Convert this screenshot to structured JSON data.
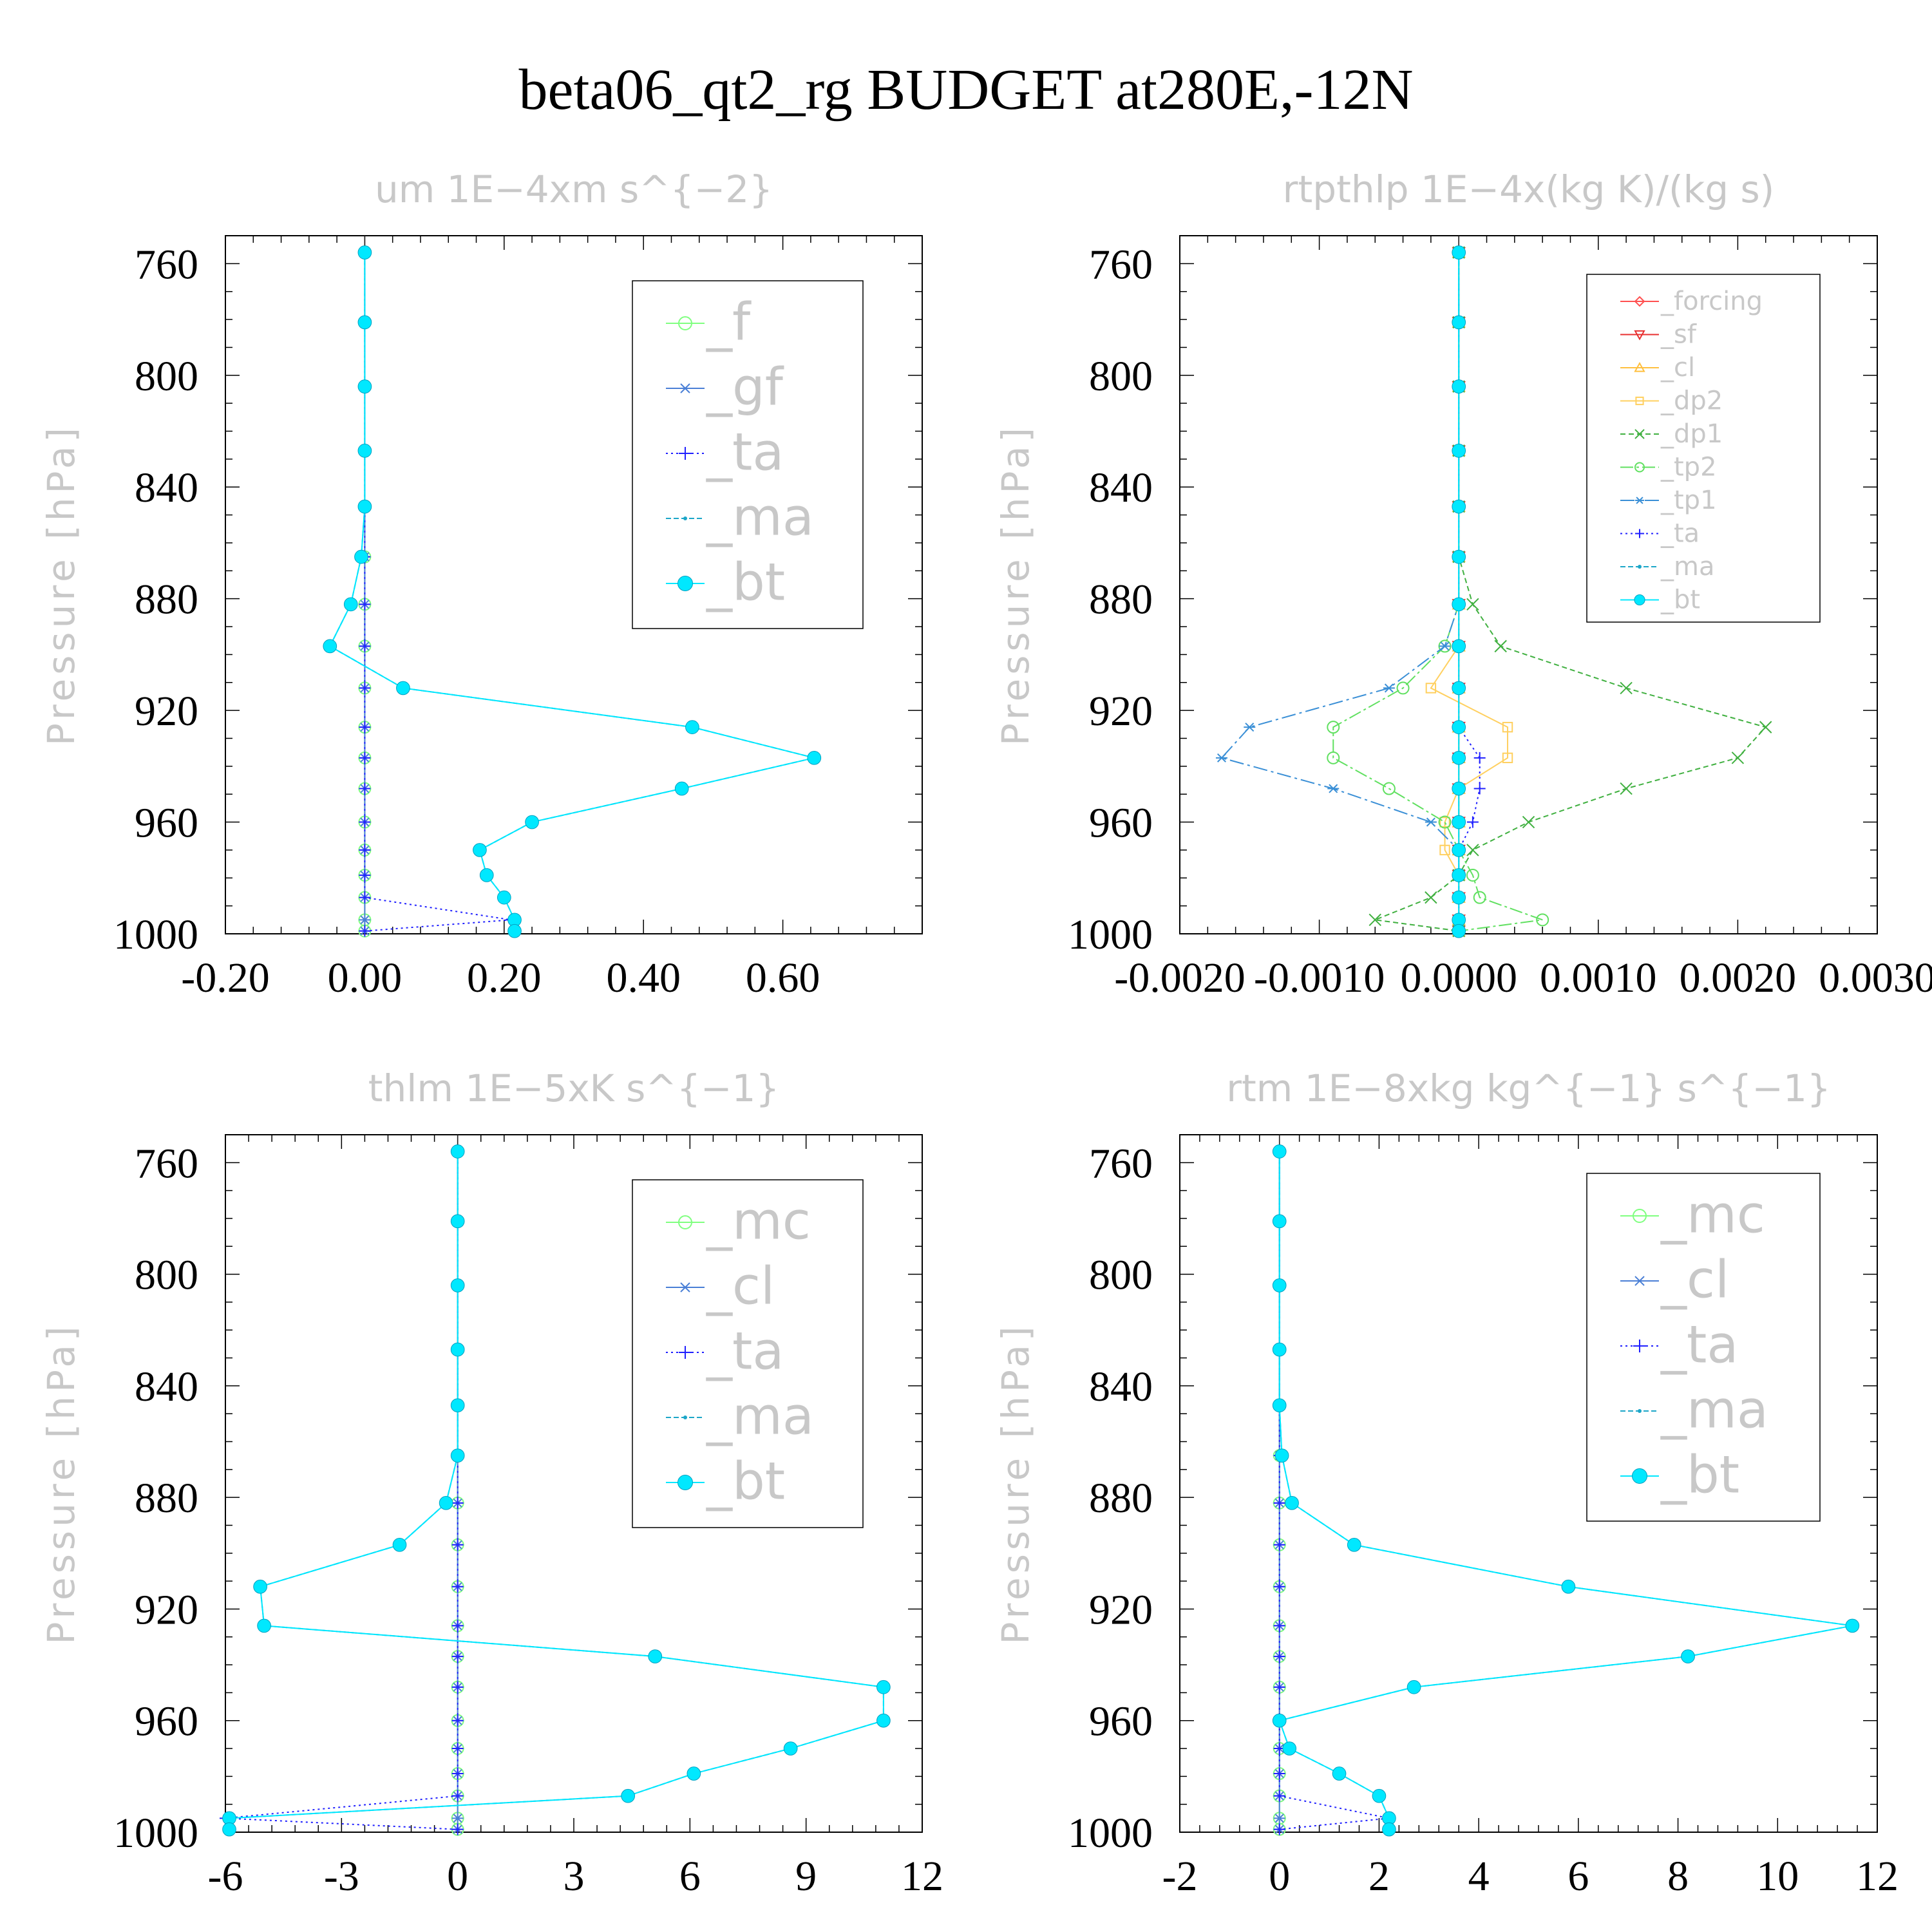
{
  "figure": {
    "title": "beta06_qt2_rg  BUDGET at280E,-12N"
  },
  "chart_data": [
    {
      "type": "line",
      "title": "um   1E−4xm s^{−2}",
      "ylabel": "Pressure [hPa]",
      "xlim": [
        -0.2,
        0.8
      ],
      "ylim": [
        1000,
        750
      ],
      "xticks": [
        "-0.20",
        "0.00",
        "0.20",
        "0.40",
        "0.60"
      ],
      "yticks": [
        "760",
        "800",
        "840",
        "880",
        "920",
        "960",
        "1000"
      ],
      "pressure": [
        756,
        781,
        804,
        827,
        847,
        865,
        882,
        897,
        912,
        926,
        937,
        948,
        960,
        970,
        979,
        987,
        995,
        999
      ],
      "series": [
        {
          "name": "_f",
          "color": "#80ff80",
          "marker": "circle-open",
          "dash": "none",
          "values": [
            0,
            0,
            0,
            0,
            0,
            0,
            0,
            0,
            0,
            0,
            0,
            0,
            0,
            0,
            0,
            0,
            0,
            0
          ]
        },
        {
          "name": "_gf",
          "color": "#4a7fd6",
          "marker": "asterisk",
          "dash": "none",
          "values": [
            0,
            0,
            0,
            0,
            0,
            0,
            0,
            0,
            0,
            0,
            0,
            0,
            0,
            0,
            0,
            0,
            0,
            0
          ]
        },
        {
          "name": "_ta",
          "color": "#2020ff",
          "marker": "plus",
          "dash": "3 5",
          "values": [
            0,
            0,
            0,
            0,
            0,
            0,
            0,
            0,
            0,
            0,
            0,
            0,
            0,
            0,
            0,
            0,
            0.21,
            0
          ]
        },
        {
          "name": "_ma",
          "color": "#1ca6c8",
          "marker": "dot",
          "dash": "8 4",
          "values": [
            0,
            0,
            0,
            0,
            0,
            -0.005,
            -0.02,
            -0.05,
            0.055,
            0.47,
            0.645,
            0.455,
            0.24,
            0.165,
            0.175,
            0.2,
            0.215,
            0.215
          ]
        },
        {
          "name": "_bt",
          "color": "#00e8ff",
          "marker": "circle-filled",
          "dash": "none",
          "values": [
            0,
            0,
            0,
            0,
            0,
            -0.005,
            -0.02,
            -0.05,
            0.055,
            0.47,
            0.645,
            0.455,
            0.24,
            0.165,
            0.175,
            0.2,
            0.215,
            0.215
          ]
        }
      ]
    },
    {
      "type": "line",
      "title": "rtpthlp   1E−4x(kg K)/(kg s)",
      "ylabel": "Pressure [hPa]",
      "xlim": [
        -0.002,
        0.003
      ],
      "ylim": [
        1000,
        750
      ],
      "xticks": [
        "-0.0020",
        "-0.0010",
        "0.0000",
        "0.0010",
        "0.0020",
        "0.0030"
      ],
      "yticks": [
        "760",
        "800",
        "840",
        "880",
        "920",
        "960",
        "1000"
      ],
      "pressure": [
        756,
        781,
        804,
        827,
        847,
        865,
        882,
        897,
        912,
        926,
        937,
        948,
        960,
        970,
        979,
        987,
        995,
        999
      ],
      "series": [
        {
          "name": "_forcing",
          "color": "#ff5050",
          "marker": "diamond",
          "dash": "none",
          "values": [
            0,
            0,
            0,
            0,
            0,
            0,
            0,
            0,
            0,
            0,
            0,
            0,
            0,
            0,
            0,
            0,
            0,
            0
          ]
        },
        {
          "name": "_sf",
          "color": "#e83030",
          "marker": "triangle-down",
          "dash": "none",
          "values": [
            0,
            0,
            0,
            0,
            0,
            0,
            0,
            0,
            0,
            0,
            0,
            0,
            0,
            0,
            0,
            0,
            0,
            0
          ]
        },
        {
          "name": "_cl",
          "color": "#ffc040",
          "marker": "triangle-up",
          "dash": "none",
          "values": [
            0,
            0,
            0,
            0,
            0,
            0,
            0,
            0,
            0,
            0,
            0,
            0,
            0,
            0,
            0,
            0,
            0,
            0
          ]
        },
        {
          "name": "_dp2",
          "color": "#ffd060",
          "marker": "square",
          "dash": "none",
          "values": [
            0,
            0,
            0,
            0,
            0,
            0,
            0,
            0,
            -0.0002,
            0.00035,
            0.00035,
            0,
            -0.0001,
            -0.0001,
            0,
            0,
            0,
            0
          ]
        },
        {
          "name": "_dp1",
          "color": "#40b040",
          "marker": "x",
          "dash": "8 5",
          "values": [
            0,
            0,
            0,
            0,
            0,
            0,
            0.0001,
            0.0003,
            0.0012,
            0.0022,
            0.002,
            0.0012,
            0.0005,
            0.0001,
            0,
            -0.0002,
            -0.0006,
            0
          ]
        },
        {
          "name": "_tp2",
          "color": "#60e060",
          "marker": "circle-open",
          "dash": "20 5 4 5",
          "values": [
            0,
            0,
            0,
            0,
            0,
            0,
            0,
            -0.0001,
            -0.0004,
            -0.0009,
            -0.0009,
            -0.0005,
            -0.0001,
            0,
            0.0001,
            0.00015,
            0.0006,
            0
          ]
        },
        {
          "name": "_tp1",
          "color": "#3a8fd6",
          "marker": "asterisk",
          "dash": "22 6 4 6",
          "values": [
            0,
            0,
            0,
            0,
            0,
            0,
            0,
            -0.0001,
            -0.0005,
            -0.0015,
            -0.0017,
            -0.0009,
            -0.0002,
            0,
            0,
            0,
            0,
            0
          ]
        },
        {
          "name": "_ta",
          "color": "#2020ff",
          "marker": "plus",
          "dash": "3 5",
          "values": [
            0,
            0,
            0,
            0,
            0,
            0,
            0,
            0,
            0,
            0,
            0.00015,
            0.00015,
            0.0001,
            0,
            0,
            0,
            0,
            0
          ]
        },
        {
          "name": "_ma",
          "color": "#1ca6c8",
          "marker": "dot",
          "dash": "8 4",
          "values": [
            0,
            0,
            0,
            0,
            0,
            0,
            0,
            0,
            0,
            0,
            0,
            0,
            0,
            0,
            0,
            0,
            0,
            0
          ]
        },
        {
          "name": "_bt",
          "color": "#00e8ff",
          "marker": "circle-filled",
          "dash": "none",
          "values": [
            0,
            0,
            0,
            0,
            0,
            0,
            0,
            0,
            0,
            0,
            0,
            0,
            0,
            0,
            0,
            0,
            0,
            0
          ]
        }
      ]
    },
    {
      "type": "line",
      "title": "thlm   1E−5xK s^{−1}",
      "ylabel": "Pressure [hPa]",
      "xlim": [
        -6,
        12
      ],
      "ylim": [
        1000,
        750
      ],
      "xticks": [
        "-6",
        "-3",
        "0",
        "3",
        "6",
        "9",
        "12"
      ],
      "yticks": [
        "760",
        "800",
        "840",
        "880",
        "920",
        "960",
        "1000"
      ],
      "pressure": [
        756,
        781,
        804,
        827,
        847,
        865,
        882,
        897,
        912,
        926,
        937,
        948,
        960,
        970,
        979,
        987,
        995,
        999
      ],
      "series": [
        {
          "name": "_mc",
          "color": "#80ff80",
          "marker": "circle-open",
          "dash": "none",
          "values": [
            0,
            0,
            0,
            0,
            0,
            0,
            0,
            0,
            0,
            0,
            0,
            0,
            0,
            0,
            0,
            0,
            0,
            0
          ]
        },
        {
          "name": "_cl",
          "color": "#4a7fd6",
          "marker": "asterisk",
          "dash": "none",
          "values": [
            0,
            0,
            0,
            0,
            0,
            0,
            0,
            0,
            0,
            0,
            0,
            0,
            0,
            0,
            0,
            0,
            0,
            0
          ]
        },
        {
          "name": "_ta",
          "color": "#2020ff",
          "marker": "plus",
          "dash": "3 5",
          "values": [
            0,
            0,
            0,
            0,
            0,
            0,
            0,
            0,
            0,
            0,
            0,
            0,
            0,
            0,
            0,
            0,
            -6,
            0
          ]
        },
        {
          "name": "_ma",
          "color": "#1ca6c8",
          "marker": "dot",
          "dash": "8 4",
          "values": [
            0,
            0,
            0,
            0,
            0,
            0,
            -0.3,
            -1.5,
            -5.1,
            -5.0,
            5.1,
            11.0,
            11.0,
            8.6,
            6.1,
            4.4,
            -5.9,
            -5.9
          ]
        },
        {
          "name": "_bt",
          "color": "#00e8ff",
          "marker": "circle-filled",
          "dash": "none",
          "values": [
            0,
            0,
            0,
            0,
            0,
            0,
            -0.3,
            -1.5,
            -5.1,
            -5.0,
            5.1,
            11.0,
            11.0,
            8.6,
            6.1,
            4.4,
            -5.9,
            -5.9
          ]
        }
      ]
    },
    {
      "type": "line",
      "title": "rtm   1E−8xkg kg^{−1} s^{−1}",
      "ylabel": "Pressure [hPa]",
      "xlim": [
        -2,
        12
      ],
      "ylim": [
        1000,
        750
      ],
      "xticks": [
        "-2",
        "0",
        "2",
        "4",
        "6",
        "8",
        "10",
        "12"
      ],
      "yticks": [
        "760",
        "800",
        "840",
        "880",
        "920",
        "960",
        "1000"
      ],
      "pressure": [
        756,
        781,
        804,
        827,
        847,
        865,
        882,
        897,
        912,
        926,
        937,
        948,
        960,
        970,
        979,
        987,
        995,
        999
      ],
      "series": [
        {
          "name": "_mc",
          "color": "#80ff80",
          "marker": "circle-open",
          "dash": "none",
          "values": [
            0,
            0,
            0,
            0,
            0,
            0,
            0,
            0,
            0,
            0,
            0,
            0,
            0,
            0,
            0,
            0,
            0,
            0
          ]
        },
        {
          "name": "_cl",
          "color": "#4a7fd6",
          "marker": "asterisk",
          "dash": "none",
          "values": [
            0,
            0,
            0,
            0,
            0,
            0,
            0,
            0,
            0,
            0,
            0,
            0,
            0,
            0,
            0,
            0,
            0,
            0
          ]
        },
        {
          "name": "_ta",
          "color": "#2020ff",
          "marker": "plus",
          "dash": "3 5",
          "values": [
            0,
            0,
            0,
            0,
            0,
            0,
            0,
            0,
            0,
            0,
            0,
            0,
            0,
            0,
            0,
            0,
            2.2,
            0
          ]
        },
        {
          "name": "_ma",
          "color": "#1ca6c8",
          "marker": "dot",
          "dash": "8 4",
          "values": [
            0,
            0,
            0,
            0,
            0,
            0.05,
            0.25,
            1.5,
            5.8,
            11.5,
            8.2,
            2.7,
            0,
            0.2,
            1.2,
            2.0,
            2.2,
            2.2
          ]
        },
        {
          "name": "_bt",
          "color": "#00e8ff",
          "marker": "circle-filled",
          "dash": "none",
          "values": [
            0,
            0,
            0,
            0,
            0,
            0.05,
            0.25,
            1.5,
            5.8,
            11.5,
            8.2,
            2.7,
            0,
            0.2,
            1.2,
            2.0,
            2.2,
            2.2
          ]
        }
      ]
    }
  ]
}
